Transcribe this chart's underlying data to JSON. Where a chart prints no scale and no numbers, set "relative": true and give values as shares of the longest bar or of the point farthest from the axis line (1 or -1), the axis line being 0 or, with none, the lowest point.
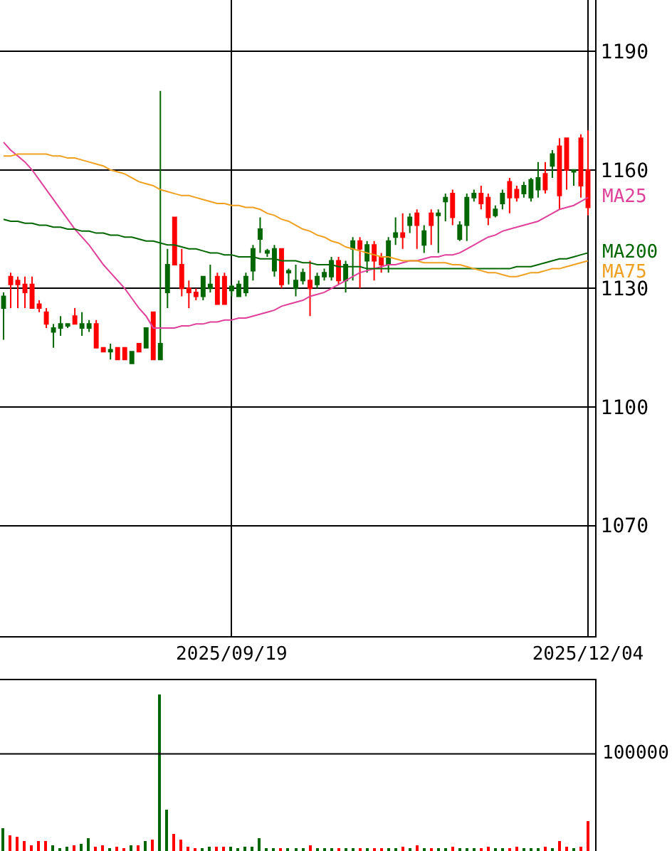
{
  "chart_data": [
    {
      "type": "candlestick",
      "categories": [
        null,
        null,
        null,
        null,
        null,
        null,
        null,
        null,
        null,
        null,
        null,
        null,
        null,
        null,
        null,
        null,
        null,
        null,
        null,
        null,
        null,
        null,
        null,
        null,
        null,
        null,
        null,
        null,
        null,
        null,
        null,
        null,
        "2025/09/19",
        null,
        null,
        null,
        null,
        null,
        null,
        null,
        null,
        null,
        null,
        null,
        null,
        null,
        null,
        null,
        null,
        null,
        null,
        null,
        null,
        null,
        null,
        null,
        null,
        null,
        null,
        null,
        null,
        null,
        null,
        null,
        null,
        null,
        null,
        null,
        null,
        null,
        null,
        null,
        null,
        null,
        null,
        null,
        null,
        null,
        null,
        null,
        null,
        null,
        "2025/12/04"
      ],
      "ohlc": [
        [
          1128,
          1129,
          1117,
          1125
        ],
        [
          1131,
          1134,
          1125,
          1133
        ],
        [
          1131,
          1133,
          1125,
          1132
        ],
        [
          1129,
          1133,
          1125,
          1131
        ],
        [
          1125,
          1133,
          1125,
          1131
        ],
        [
          1125,
          1127,
          1124,
          1126
        ],
        [
          1121,
          1125,
          1120,
          1124
        ],
        [
          1120,
          1121,
          1115,
          1119
        ],
        [
          1121,
          1123,
          1118,
          1120
        ],
        [
          1121,
          1121,
          1120,
          1120.5
        ],
        [
          1121,
          1125,
          1121,
          1123
        ],
        [
          1121,
          1124,
          1118,
          1120
        ],
        [
          1121,
          1122,
          1119,
          1120
        ],
        [
          1115,
          1122,
          1115,
          1121
        ],
        [
          1114,
          1115,
          1114,
          1115
        ],
        [
          1114.5,
          1116,
          1112,
          1114
        ],
        [
          1112,
          1115,
          1112,
          1115
        ],
        [
          1112,
          1115,
          1112,
          1115
        ],
        [
          1114,
          1114,
          1111,
          1111
        ],
        [
          1114,
          1116,
          1114,
          1116
        ],
        [
          1120,
          1120,
          1115,
          1115
        ],
        [
          1112,
          1124,
          1112,
          1124
        ],
        [
          1116,
          1180,
          1112,
          1112
        ],
        [
          1136,
          1140,
          1125,
          1129
        ],
        [
          1136,
          1148,
          1136,
          1148
        ],
        [
          1130,
          1140,
          1128,
          1136
        ],
        [
          1129,
          1132,
          1125,
          1130
        ],
        [
          1128,
          1130,
          1127,
          1129
        ],
        [
          1133,
          1133,
          1127,
          1128
        ],
        [
          1131,
          1136,
          1129,
          1130
        ],
        [
          1126,
          1134,
          1126,
          1133
        ],
        [
          1126,
          1134,
          1126,
          1133
        ],
        [
          1130.5,
          1131,
          1128,
          1129.5
        ],
        [
          1131,
          1132,
          1128,
          1128
        ],
        [
          1133,
          1134,
          1128,
          1129
        ],
        [
          1140,
          1141,
          1132,
          1134.5
        ],
        [
          1145,
          1148,
          1139,
          1142.5
        ],
        [
          1139.5,
          1140,
          1138,
          1139
        ],
        [
          1140,
          1141,
          1133,
          1134.5
        ],
        [
          1131,
          1140,
          1130,
          1140
        ],
        [
          1134.5,
          1135,
          1131,
          1134
        ],
        [
          1132,
          1136,
          1128,
          1130
        ],
        [
          1134,
          1135,
          1131,
          1132
        ],
        [
          1130,
          1137,
          1123,
          1132
        ],
        [
          1133,
          1134,
          1130,
          1131
        ],
        [
          1134,
          1135,
          1132,
          1133
        ],
        [
          1137,
          1138,
          1132,
          1133
        ],
        [
          1132,
          1138,
          1131,
          1137
        ],
        [
          1136,
          1137,
          1129,
          1132
        ],
        [
          1142,
          1143,
          1132,
          1140
        ],
        [
          1140,
          1143,
          1130,
          1142
        ],
        [
          1141,
          1142,
          1134,
          1137
        ],
        [
          1137,
          1142,
          1132,
          1141
        ],
        [
          1136,
          1139,
          1134,
          1138
        ],
        [
          1142,
          1143,
          1134,
          1136
        ],
        [
          1144,
          1148,
          1141,
          1143
        ],
        [
          1143,
          1149,
          1140,
          1144
        ],
        [
          1148,
          1149,
          1144,
          1146
        ],
        [
          1146,
          1150,
          1140,
          1149
        ],
        [
          1144.5,
          1146,
          1139,
          1141
        ],
        [
          1146,
          1150,
          1141,
          1149
        ],
        [
          1149,
          1150,
          1139,
          1148.5
        ],
        [
          1153,
          1154,
          1147,
          1152
        ],
        [
          1148,
          1155,
          1146,
          1154
        ],
        [
          1146,
          1147,
          1142,
          1142.5
        ],
        [
          1153,
          1154,
          1142,
          1146
        ],
        [
          1154,
          1155,
          1152,
          1153
        ],
        [
          1151.5,
          1156,
          1150,
          1154
        ],
        [
          1148,
          1154,
          1146,
          1153
        ],
        [
          1150,
          1151,
          1148,
          1148.5
        ],
        [
          1154,
          1155,
          1150,
          1151.5
        ],
        [
          1153,
          1158,
          1149,
          1157
        ],
        [
          1153,
          1156,
          1152,
          1155
        ],
        [
          1156,
          1157,
          1153,
          1154
        ],
        [
          1157.5,
          1158,
          1152,
          1153
        ],
        [
          1158,
          1162,
          1153,
          1155
        ],
        [
          1155,
          1162,
          1154,
          1159
        ],
        [
          1164,
          1165,
          1158,
          1161
        ],
        [
          1153.5,
          1168,
          1150,
          1166
        ],
        [
          1160,
          1168,
          1155,
          1168
        ],
        [
          1160,
          1160,
          1156,
          1159.5
        ],
        [
          1156,
          1169,
          1153,
          1168
        ],
        [
          1150.5,
          1170,
          1148.5,
          1160
        ]
      ],
      "colors": [
        "#006600",
        "#ff0000",
        "#ff0000",
        "#ff0000",
        "#ff0000",
        "#ff0000",
        "#ff0000",
        "#006600",
        "#006600",
        "#006600",
        "#ff0000",
        "#006600",
        "#006600",
        "#ff0000",
        "#ff0000",
        "#006600",
        "#ff0000",
        "#ff0000",
        "#006600",
        "#ff0000",
        "#006600",
        "#ff0000",
        "#006600",
        "#006600",
        "#ff0000",
        "#ff0000",
        "#ff0000",
        "#ff0000",
        "#006600",
        "#006600",
        "#ff0000",
        "#ff0000",
        "#006600",
        "#006600",
        "#006600",
        "#006600",
        "#006600",
        "#006600",
        "#006600",
        "#ff0000",
        "#006600",
        "#006600",
        "#006600",
        "#ff0000",
        "#006600",
        "#006600",
        "#006600",
        "#ff0000",
        "#006600",
        "#006600",
        "#ff0000",
        "#006600",
        "#ff0000",
        "#ff0000",
        "#006600",
        "#006600",
        "#ff0000",
        "#006600",
        "#ff0000",
        "#006600",
        "#ff0000",
        "#006600",
        "#006600",
        "#ff0000",
        "#006600",
        "#006600",
        "#006600",
        "#ff0000",
        "#ff0000",
        "#006600",
        "#006600",
        "#ff0000",
        "#ff0000",
        "#006600",
        "#006600",
        "#006600",
        "#ff0000",
        "#006600",
        "#ff0000",
        "#ff0000",
        "#006600",
        "#ff0000",
        "#ff0000"
      ],
      "ylim": [
        1042,
        1203
      ],
      "yticks": [
        1070,
        1100,
        1130,
        1160,
        1190
      ],
      "grid": true,
      "series": [
        {
          "name": "MA25",
          "type": "line",
          "color": "#e0409a",
          "values": [
            1167,
            1165,
            1163.5,
            1162,
            1160,
            1157.5,
            1155,
            1152.5,
            1150,
            1147.5,
            1145,
            1143,
            1141,
            1138.5,
            1136,
            1134,
            1132,
            1130,
            1127.5,
            1125,
            1123,
            1120,
            1120,
            1120,
            1120,
            1120.5,
            1120.5,
            1121,
            1121,
            1121.5,
            1121.5,
            1122,
            1122,
            1122.5,
            1122.5,
            1123,
            1123.5,
            1124,
            1124.5,
            1125.5,
            1126,
            1126.5,
            1127,
            1128,
            1128.5,
            1129,
            1130,
            1131,
            1132,
            1133,
            1134,
            1134.5,
            1135,
            1135.5,
            1136,
            1136,
            1136.5,
            1137,
            1137,
            1137.5,
            1138,
            1138,
            1138.5,
            1138.5,
            1139,
            1140,
            1141,
            1142,
            1143,
            1143.5,
            1144.5,
            1145,
            1145.5,
            1146,
            1146.5,
            1147,
            1148,
            1149,
            1150,
            1150.5,
            1151,
            1152,
            1153
          ]
        },
        {
          "name": "MA200",
          "type": "line",
          "color": "#006600",
          "values": [
            1147.5,
            1147,
            1147,
            1146.5,
            1146.5,
            1146,
            1146,
            1145.5,
            1145.5,
            1145,
            1145,
            1144.5,
            1144.5,
            1144,
            1144,
            1143.5,
            1143.5,
            1143,
            1143,
            1142.5,
            1142,
            1142,
            1141.5,
            1141,
            1141,
            1140.5,
            1140,
            1140,
            1139.5,
            1139,
            1139,
            1138.5,
            1138.5,
            1138,
            1138,
            1138,
            1137.5,
            1137.5,
            1137.5,
            1137,
            1137,
            1137,
            1136.5,
            1136.5,
            1136,
            1136,
            1136,
            1135.5,
            1135.5,
            1135.5,
            1135.5,
            1135,
            1135,
            1135,
            1135,
            1135,
            1135,
            1135,
            1135,
            1135,
            1135,
            1135,
            1135,
            1135,
            1135,
            1135,
            1135,
            1135,
            1135,
            1135,
            1135,
            1135,
            1135.5,
            1135.5,
            1135.5,
            1136,
            1136.5,
            1137,
            1137.5,
            1137.5,
            1138,
            1138.5,
            1139
          ]
        },
        {
          "name": "MA75",
          "type": "line",
          "color": "#f0a020",
          "values": [
            1163.5,
            1163.5,
            1164,
            1164,
            1164,
            1164,
            1164,
            1163.5,
            1163.5,
            1163,
            1163,
            1162.5,
            1162,
            1161.5,
            1161,
            1160,
            1159.5,
            1159,
            1158,
            1157,
            1156.5,
            1156,
            1155,
            1154.5,
            1154,
            1153.5,
            1153.5,
            1153,
            1152.5,
            1152,
            1151.5,
            1151.5,
            1151,
            1151,
            1150.5,
            1150.5,
            1150,
            1149,
            1148.5,
            1147.5,
            1147,
            1146,
            1145,
            1144.5,
            1143.5,
            1143,
            1142,
            1141.5,
            1140.5,
            1140,
            1139.5,
            1139,
            1138.5,
            1138,
            1138,
            1137.5,
            1137,
            1137,
            1137,
            1136.5,
            1136.5,
            1136.5,
            1136.5,
            1136,
            1136,
            1135.5,
            1135,
            1134.5,
            1134,
            1134,
            1133.5,
            1133,
            1133,
            1133.5,
            1134,
            1134,
            1134.5,
            1135,
            1135,
            1135.5,
            1136,
            1136.5,
            1137
          ]
        }
      ]
    },
    {
      "type": "bar",
      "categories": [
        null,
        null,
        null,
        null,
        null,
        null,
        null,
        null,
        null,
        null,
        null,
        null,
        null,
        null,
        null,
        null,
        null,
        null,
        null,
        null,
        null,
        null,
        null,
        null,
        null,
        null,
        null,
        null,
        null,
        null,
        null,
        null,
        null,
        null,
        null,
        null,
        null,
        null,
        null,
        null,
        null,
        null,
        null,
        null,
        null,
        null,
        null,
        null,
        null,
        null,
        null,
        null,
        null,
        null,
        null,
        null,
        null,
        null,
        null,
        null,
        null,
        null,
        null,
        null,
        null,
        null,
        null,
        null,
        null,
        null,
        null,
        null,
        null,
        null,
        null,
        null,
        null,
        null,
        null,
        null,
        null,
        null,
        null
      ],
      "values": [
        0.15,
        0.1,
        0.09,
        0.06,
        0.04,
        0.06,
        0.06,
        0.04,
        0.02,
        0.03,
        0.04,
        0.05,
        0.08,
        0.03,
        0.04,
        0.02,
        0.03,
        0.02,
        0.04,
        0.04,
        0.06,
        0.07,
        1,
        0.26,
        0.11,
        0.07,
        0.03,
        0.02,
        0.02,
        0.03,
        0.03,
        0.03,
        0.03,
        0.02,
        0.03,
        0.03,
        0.08,
        0.02,
        0.02,
        0.02,
        0.02,
        0.02,
        0.02,
        0.04,
        0.02,
        0.02,
        0.02,
        0.02,
        0.02,
        0.02,
        0.02,
        0.02,
        0.02,
        0.02,
        0.02,
        0.02,
        0.03,
        0.02,
        0.04,
        0.02,
        0.02,
        0.02,
        0.02,
        0.03,
        0.02,
        0.02,
        0.02,
        0.02,
        0.03,
        0.02,
        0.02,
        0.02,
        0.03,
        0.02,
        0.02,
        0.02,
        0.03,
        0.02,
        0.06,
        0.03,
        0.02,
        0.03,
        0.19
      ],
      "colors": [
        "#006600",
        "#ff0000",
        "#ff0000",
        "#ff0000",
        "#ff0000",
        "#ff0000",
        "#ff0000",
        "#006600",
        "#006600",
        "#006600",
        "#ff0000",
        "#006600",
        "#006600",
        "#ff0000",
        "#ff0000",
        "#006600",
        "#ff0000",
        "#ff0000",
        "#006600",
        "#ff0000",
        "#006600",
        "#ff0000",
        "#006600",
        "#006600",
        "#ff0000",
        "#ff0000",
        "#ff0000",
        "#ff0000",
        "#006600",
        "#006600",
        "#ff0000",
        "#ff0000",
        "#006600",
        "#006600",
        "#006600",
        "#006600",
        "#006600",
        "#006600",
        "#006600",
        "#ff0000",
        "#006600",
        "#006600",
        "#006600",
        "#ff0000",
        "#006600",
        "#006600",
        "#006600",
        "#ff0000",
        "#006600",
        "#006600",
        "#ff0000",
        "#006600",
        "#ff0000",
        "#ff0000",
        "#006600",
        "#006600",
        "#ff0000",
        "#006600",
        "#ff0000",
        "#006600",
        "#ff0000",
        "#006600",
        "#006600",
        "#ff0000",
        "#006600",
        "#006600",
        "#006600",
        "#ff0000",
        "#ff0000",
        "#006600",
        "#006600",
        "#ff0000",
        "#ff0000",
        "#006600",
        "#006600",
        "#006600",
        "#ff0000",
        "#006600",
        "#ff0000",
        "#ff0000",
        "#006600",
        "#ff0000",
        "#ff0000"
      ],
      "relative": true,
      "ref_lines": [
        {
          "axis": "y",
          "value": 0.62,
          "color": "#000000"
        }
      ],
      "annotations": [
        "100000"
      ]
    }
  ]
}
